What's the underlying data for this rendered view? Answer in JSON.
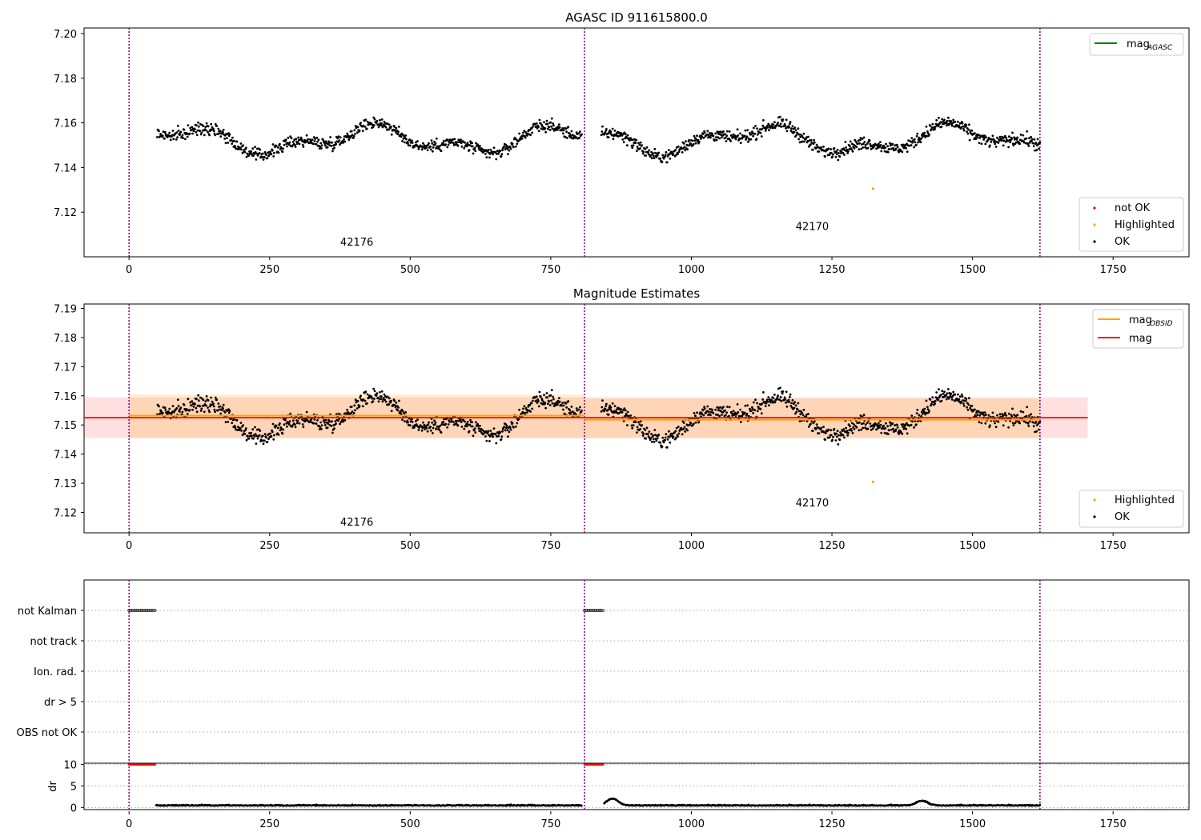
{
  "chart_data": [
    {
      "type": "scatter",
      "title": "AGASC ID 911615800.0",
      "xlim": [
        -80,
        1885
      ],
      "ylim": [
        7.1,
        7.2025
      ],
      "xticks": [
        0,
        250,
        500,
        750,
        1000,
        1250,
        1500,
        1750
      ],
      "yticks": [
        7.12,
        7.14,
        7.16,
        7.18,
        7.2
      ],
      "obs_boundaries": [
        0,
        810,
        1620
      ],
      "obs_labels": [
        {
          "text": "42176",
          "x": 405,
          "y": 7.105
        },
        {
          "text": "42170",
          "x": 1215,
          "y": 7.112
        }
      ],
      "legend_lines": [
        {
          "label": "mag",
          "sub": "AGASC",
          "color": "#008000"
        }
      ],
      "legend_points": [
        {
          "label": "not OK",
          "color": "#ff0000"
        },
        {
          "label": "Highlighted",
          "color": "#ffa500"
        },
        {
          "label": "OK",
          "color": "#000000"
        }
      ],
      "series": [
        {
          "name": "OK",
          "color": "#000000",
          "segments": [
            [
              50,
              805
            ],
            [
              840,
              1620
            ]
          ],
          "mean": 7.1525,
          "amplitude": 0.006,
          "noise": 0.0045
        },
        {
          "name": "Highlighted",
          "color": "#ffa500",
          "points": [
            {
              "x": 1323,
              "y": 7.1305
            }
          ]
        }
      ]
    },
    {
      "type": "scatter",
      "title": "Magnitude Estimates",
      "xlim": [
        -80,
        1885
      ],
      "ylim": [
        7.113,
        7.1915
      ],
      "xticks": [
        0,
        250,
        500,
        750,
        1000,
        1250,
        1500,
        1750
      ],
      "yticks": [
        7.12,
        7.13,
        7.14,
        7.15,
        7.16,
        7.17,
        7.18,
        7.19
      ],
      "obs_boundaries": [
        0,
        810,
        1620
      ],
      "obs_labels": [
        {
          "text": "42176",
          "x": 405,
          "y": 7.1155
        },
        {
          "text": "42170",
          "x": 1215,
          "y": 7.122
        }
      ],
      "legend_lines": [
        {
          "label": "mag",
          "sub": "OBSID",
          "color": "#ffa500"
        },
        {
          "label": "mag",
          "sub": "",
          "color": "#ff0000"
        }
      ],
      "legend_points": [
        {
          "label": "Highlighted",
          "color": "#ffa500"
        },
        {
          "label": "OK",
          "color": "#000000"
        }
      ],
      "mag": {
        "value": 7.1525,
        "band": [
          7.1455,
          7.1595
        ],
        "x_range": [
          -80,
          1705
        ],
        "color": "#ff0000"
      },
      "mag_obsid": [
        {
          "x_range": [
            0,
            810
          ],
          "value": 7.1532,
          "band": [
            7.1455,
            7.1605
          ]
        },
        {
          "x_range": [
            810,
            1620
          ],
          "value": 7.1518,
          "band": [
            7.1455,
            7.159
          ]
        }
      ],
      "series": [
        {
          "name": "OK",
          "color": "#000000",
          "segments": [
            [
              50,
              805
            ],
            [
              840,
              1620
            ]
          ],
          "mean": 7.1525,
          "amplitude": 0.006,
          "noise": 0.0045
        },
        {
          "name": "Highlighted",
          "color": "#ffa500",
          "points": [
            {
              "x": 1323,
              "y": 7.1305
            }
          ]
        }
      ]
    },
    {
      "type": "scatter",
      "title": "",
      "xlim": [
        -80,
        1885
      ],
      "flag_labels": [
        "not Kalman",
        "not track",
        "Ion. rad.",
        "dr > 5",
        "OBS not OK"
      ],
      "flags": [
        {
          "flag": "not Kalman",
          "ranges": [
            [
              0,
              48
            ],
            [
              810,
              845
            ]
          ]
        }
      ],
      "obs_boundaries": [
        0,
        810,
        1620
      ]
    },
    {
      "type": "scatter",
      "title": "",
      "ylabel": "dr",
      "xlim": [
        -80,
        1885
      ],
      "ylim": [
        -0.5,
        10.3
      ],
      "xticks": [
        0,
        250,
        500,
        750,
        1000,
        1250,
        1500,
        1750
      ],
      "yticks": [
        0,
        5,
        10
      ],
      "obs_boundaries": [
        0,
        810,
        1620
      ],
      "clipped_points": {
        "value": 10,
        "color": "#ff0000",
        "ranges": [
          [
            0,
            48
          ],
          [
            810,
            845
          ]
        ]
      },
      "dr_segments": [
        [
          48,
          805
        ],
        [
          845,
          1620
        ]
      ],
      "dr_baseline": 0.4,
      "dr_bumps": [
        {
          "x": 860,
          "height": 1.6
        },
        {
          "x": 1410,
          "height": 1.1
        }
      ]
    }
  ]
}
